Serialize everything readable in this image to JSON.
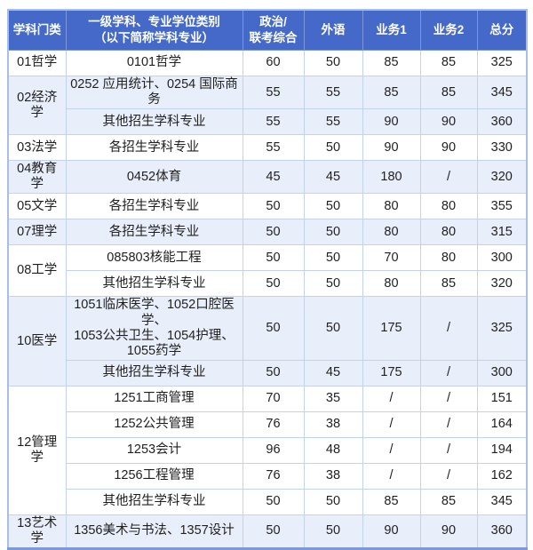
{
  "colors": {
    "header_bg": "#4569c8",
    "header_text": "#ffffff",
    "stripe_bg": "#e9effa",
    "grid_line": "#c3d2ef",
    "outer_border": "#7d99d6",
    "body_text": "#1f1f1f"
  },
  "table": {
    "head": {
      "category": "学科门类",
      "discipline": "一级学科、专业学位类别\n（以下简称学科专业）",
      "politics": "政治/\n联考综合",
      "foreign": "外语",
      "business1": "业务1",
      "business2": "业务2",
      "total": "总分"
    },
    "rows": [
      {
        "category": "01哲学",
        "major": "0101哲学",
        "politics": "60",
        "foreign": "50",
        "biz1": "85",
        "biz2": "85",
        "total": "325"
      },
      {
        "category": "02经济学",
        "major": "0252 应用统计、0254 国际商务",
        "politics": "55",
        "foreign": "55",
        "biz1": "85",
        "biz2": "85",
        "total": "345"
      },
      {
        "major": "其他招生学科专业",
        "politics": "55",
        "foreign": "55",
        "biz1": "90",
        "biz2": "90",
        "total": "360"
      },
      {
        "category": "03法学",
        "major": "各招生学科专业",
        "politics": "55",
        "foreign": "50",
        "biz1": "90",
        "biz2": "90",
        "total": "330"
      },
      {
        "category": "04教育学",
        "major": "0452体育",
        "politics": "45",
        "foreign": "45",
        "biz1": "180",
        "biz2": "/",
        "total": "320"
      },
      {
        "category": "05文学",
        "major": "各招生学科专业",
        "politics": "50",
        "foreign": "50",
        "biz1": "80",
        "biz2": "80",
        "total": "355"
      },
      {
        "category": "07理学",
        "major": "各招生学科专业",
        "politics": "50",
        "foreign": "50",
        "biz1": "80",
        "biz2": "80",
        "total": "315"
      },
      {
        "category": "08工学",
        "major": "085803核能工程",
        "politics": "50",
        "foreign": "50",
        "biz1": "70",
        "biz2": "80",
        "total": "300"
      },
      {
        "major": "其他招生学科专业",
        "politics": "50",
        "foreign": "50",
        "biz1": "80",
        "biz2": "85",
        "total": "320"
      },
      {
        "category": "10医学",
        "major": "1051临床医学、1052口腔医学、\n1053公共卫生、1054护理、\n1055药学",
        "politics": "50",
        "foreign": "50",
        "biz1": "175",
        "biz2": "/",
        "total": "325"
      },
      {
        "major": "其他招生学科专业",
        "politics": "50",
        "foreign": "45",
        "biz1": "175",
        "biz2": "/",
        "total": "300"
      },
      {
        "category": "12管理学",
        "major": "1251工商管理",
        "politics": "70",
        "foreign": "35",
        "biz1": "/",
        "biz2": "/",
        "total": "151"
      },
      {
        "major": "1252公共管理",
        "politics": "76",
        "foreign": "38",
        "biz1": "/",
        "biz2": "/",
        "total": "164"
      },
      {
        "major": "1253会计",
        "politics": "96",
        "foreign": "48",
        "biz1": "/",
        "biz2": "/",
        "total": "194"
      },
      {
        "major": "1256工程管理",
        "politics": "76",
        "foreign": "38",
        "biz1": "/",
        "biz2": "/",
        "total": "162"
      },
      {
        "major": "其他招生学科专业",
        "politics": "50",
        "foreign": "50",
        "biz1": "85",
        "biz2": "85",
        "total": "345"
      },
      {
        "category": "13艺术学",
        "major": "1356美术与书法、1357设计",
        "politics": "50",
        "foreign": "50",
        "biz1": "90",
        "biz2": "90",
        "total": "360"
      }
    ]
  }
}
